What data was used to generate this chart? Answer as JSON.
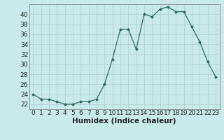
{
  "x": [
    0,
    1,
    2,
    3,
    4,
    5,
    6,
    7,
    8,
    9,
    10,
    11,
    12,
    13,
    14,
    15,
    16,
    17,
    18,
    19,
    20,
    21,
    22,
    23
  ],
  "y": [
    24,
    23,
    23,
    22.5,
    22,
    22,
    22.5,
    22.5,
    23,
    26,
    31,
    37,
    37,
    33,
    40,
    39.5,
    41,
    41.5,
    40.5,
    40.5,
    37.5,
    34.5,
    30.5,
    27.5
  ],
  "xlabel": "Humidex (Indice chaleur)",
  "ylim": [
    21,
    42
  ],
  "xlim": [
    -0.5,
    23.5
  ],
  "yticks": [
    22,
    24,
    26,
    28,
    30,
    32,
    34,
    36,
    38,
    40
  ],
  "xticks": [
    0,
    1,
    2,
    3,
    4,
    5,
    6,
    7,
    8,
    9,
    10,
    11,
    12,
    13,
    14,
    15,
    16,
    17,
    18,
    19,
    20,
    21,
    22,
    23
  ],
  "line_color": "#2d6b5e",
  "marker_color": "#2d6b5e",
  "bg_color": "#c8eaea",
  "grid_color": "#aacccc",
  "label_fontsize": 6.5,
  "xlabel_fontsize": 7.5,
  "figsize": [
    3.2,
    2.0
  ],
  "dpi": 100
}
